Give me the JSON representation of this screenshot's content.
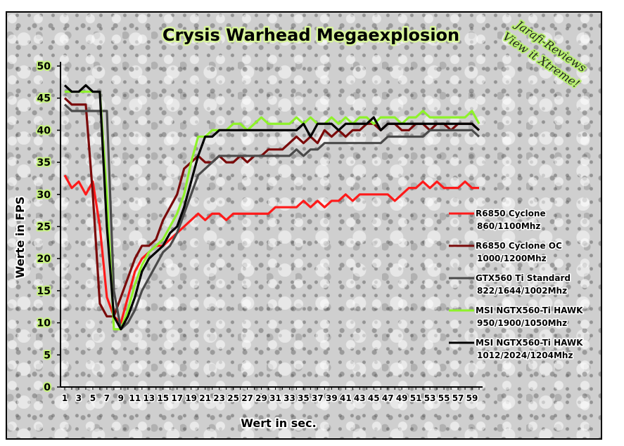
{
  "chart_data": {
    "type": "line",
    "title": "Crysis Warhead Megaexplosion",
    "watermark": [
      "Jarafi-Reviews",
      "View it Xtreme!"
    ],
    "xlabel": "Wert in sec.",
    "ylabel": "Werte in FPS",
    "xlim": [
      1,
      60
    ],
    "ylim": [
      0,
      50
    ],
    "yticks": [
      "0",
      "5",
      "10",
      "15",
      "20",
      "25",
      "30",
      "35",
      "40",
      "45",
      "50"
    ],
    "xticks": [
      "1",
      "3",
      "5",
      "7",
      "9",
      "11",
      "13",
      "15",
      "17",
      "19",
      "21",
      "23",
      "25",
      "27",
      "29",
      "31",
      "33",
      "35",
      "37",
      "39",
      "41",
      "43",
      "45",
      "47",
      "49",
      "51",
      "53",
      "55",
      "57",
      "59"
    ],
    "grid": false,
    "legend_position": "right",
    "x": [
      1,
      2,
      3,
      4,
      5,
      6,
      7,
      8,
      9,
      10,
      11,
      12,
      13,
      14,
      15,
      16,
      17,
      18,
      19,
      20,
      21,
      22,
      23,
      24,
      25,
      26,
      27,
      28,
      29,
      30,
      31,
      32,
      33,
      34,
      35,
      36,
      37,
      38,
      39,
      40,
      41,
      42,
      43,
      44,
      45,
      46,
      47,
      48,
      49,
      50,
      51,
      52,
      53,
      54,
      55,
      56,
      57,
      58,
      59,
      60
    ],
    "series": [
      {
        "name": "R6850 Cyclone",
        "detail": "860/1100Mhz",
        "color": "#ff1a1a",
        "values": [
          33,
          31,
          32,
          30,
          32,
          25,
          14,
          11,
          10,
          14,
          18,
          20,
          21,
          22,
          22,
          23,
          24,
          25,
          26,
          27,
          26,
          27,
          27,
          26,
          27,
          27,
          27,
          27,
          27,
          27,
          28,
          28,
          28,
          28,
          29,
          28,
          29,
          28,
          29,
          29,
          30,
          29,
          30,
          30,
          30,
          30,
          30,
          29,
          30,
          31,
          31,
          32,
          31,
          32,
          31,
          31,
          31,
          32,
          31,
          31
        ]
      },
      {
        "name": "R6850 Cyclone OC",
        "detail": "1000/1200Mhz",
        "color": "#7a0a0a",
        "values": [
          45,
          44,
          44,
          44,
          30,
          13,
          11,
          11,
          14,
          17,
          20,
          22,
          22,
          23,
          26,
          28,
          30,
          34,
          35,
          36,
          35,
          35,
          36,
          35,
          35,
          36,
          35,
          36,
          36,
          37,
          37,
          37,
          38,
          39,
          38,
          39,
          38,
          40,
          39,
          40,
          39,
          40,
          40,
          41,
          41,
          40,
          41,
          41,
          40,
          40,
          41,
          41,
          40,
          41,
          41,
          40,
          41,
          41,
          41,
          40
        ]
      },
      {
        "name": "GTX560 Ti Standard",
        "detail": "822/1644/1002Mhz",
        "color": "#4a4a4a",
        "values": [
          44,
          43,
          43,
          43,
          43,
          43,
          43,
          15,
          9,
          10,
          12,
          15,
          17,
          19,
          21,
          22,
          24,
          27,
          30,
          33,
          34,
          35,
          36,
          36,
          36,
          36,
          36,
          36,
          36,
          36,
          36,
          36,
          36,
          37,
          36,
          37,
          37,
          38,
          38,
          38,
          38,
          38,
          38,
          38,
          38,
          38,
          39,
          39,
          39,
          39,
          39,
          39,
          40,
          40,
          40,
          40,
          40,
          40,
          40,
          39
        ]
      },
      {
        "name": "MSI NGTX560-Ti HAWK",
        "detail": "950/1900/1050Mhz",
        "color": "#8ef22a",
        "values": [
          46,
          46,
          46,
          46,
          46,
          46,
          30,
          9,
          9,
          12,
          16,
          19,
          21,
          22,
          23,
          25,
          27,
          30,
          35,
          39,
          39,
          40,
          40,
          40,
          41,
          41,
          40,
          41,
          42,
          41,
          41,
          41,
          41,
          42,
          41,
          42,
          41,
          41,
          42,
          41,
          42,
          41,
          42,
          42,
          41,
          42,
          42,
          42,
          41,
          42,
          42,
          43,
          42,
          42,
          42,
          42,
          42,
          42,
          43,
          41
        ]
      },
      {
        "name": "MSI NGTX560-Ti HAWK",
        "detail": "1012/2024/1204Mhz",
        "color": "#000000",
        "values": [
          47,
          46,
          46,
          47,
          46,
          46,
          25,
          11,
          9,
          11,
          14,
          18,
          20,
          21,
          22,
          24,
          25,
          28,
          32,
          36,
          39,
          39,
          40,
          40,
          40,
          40,
          40,
          40,
          40,
          40,
          40,
          40,
          40,
          40,
          41,
          39,
          41,
          41,
          41,
          40,
          41,
          41,
          41,
          41,
          42,
          40,
          41,
          41,
          41,
          41,
          41,
          41,
          41,
          41,
          41,
          41,
          41,
          41,
          41,
          40
        ]
      }
    ]
  }
}
